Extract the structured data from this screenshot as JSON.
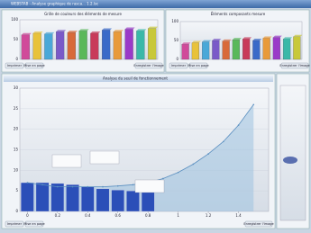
{
  "window": {
    "title": "WEBSTAB - Analyse graphique de rasca... 1.2.lsc"
  },
  "charts": [
    {
      "type": "bar",
      "title": "Grille de couleurs des éléments de mesure",
      "categories": [
        null,
        null,
        null,
        null,
        null,
        null,
        null,
        null,
        null,
        null,
        null,
        null
      ],
      "values": [
        62,
        66,
        64,
        70,
        68,
        72,
        66,
        74,
        70,
        76,
        72,
        78
      ],
      "colors": [
        "#d04a9a",
        "#e8c23a",
        "#4aa8d8",
        "#7a5ac8",
        "#d86a3a",
        "#5ab85a",
        "#c83a5a",
        "#3a6ac8",
        "#e89a3a",
        "#9a3ac8",
        "#3ab8a8",
        "#c8c83a"
      ],
      "ylim": [
        0,
        100
      ],
      "yticks": [
        0,
        50,
        100
      ]
    },
    {
      "type": "bar",
      "title": "Éléments composants mesure",
      "categories": [
        null,
        null,
        null,
        null,
        null,
        null,
        null,
        null,
        null,
        null,
        null,
        null
      ],
      "values": [
        40,
        44,
        46,
        50,
        48,
        52,
        54,
        50,
        56,
        58,
        54,
        60
      ],
      "colors": [
        "#d04a9a",
        "#e8c23a",
        "#4aa8d8",
        "#7a5ac8",
        "#d86a3a",
        "#5ab85a",
        "#c83a5a",
        "#3a6ac8",
        "#e89a3a",
        "#9a3ac8",
        "#3ab8a8",
        "#c8c83a"
      ],
      "ylim": [
        0,
        100
      ],
      "yticks": [
        0,
        50,
        100
      ]
    },
    {
      "type": "line",
      "title": "Analyse du seuil de fonctionnement",
      "x": [
        0,
        0.1,
        0.2,
        0.3,
        0.4,
        0.5,
        0.6,
        0.7,
        0.8,
        0.9,
        1.0,
        1.1,
        1.2,
        1.3,
        1.4,
        1.5
      ],
      "values": [
        7,
        6.5,
        6,
        6,
        6,
        6,
        6.2,
        6.5,
        7,
        8,
        9.5,
        11.5,
        14,
        17,
        21,
        26
      ],
      "color": "#5a8fc0",
      "bars": {
        "x": [
          0,
          0.1,
          0.2,
          0.3,
          0.4,
          0.5,
          0.6,
          0.7,
          0.8
        ],
        "values": [
          7,
          7,
          6.8,
          6.5,
          6,
          5.5,
          5.2,
          5,
          5
        ],
        "color": "#2b4fb8"
      },
      "xlim": [
        -0.05,
        1.6
      ],
      "xticks": [
        0,
        0.2,
        0.4,
        0.6,
        0.8,
        1,
        1.2,
        1.4
      ],
      "ylim": [
        0,
        30
      ],
      "yticks": [
        0,
        5,
        10,
        15,
        20,
        25,
        30
      ]
    }
  ],
  "buttons": [
    "Imprimer",
    "Mise en page",
    "Enregistrer l'image"
  ]
}
